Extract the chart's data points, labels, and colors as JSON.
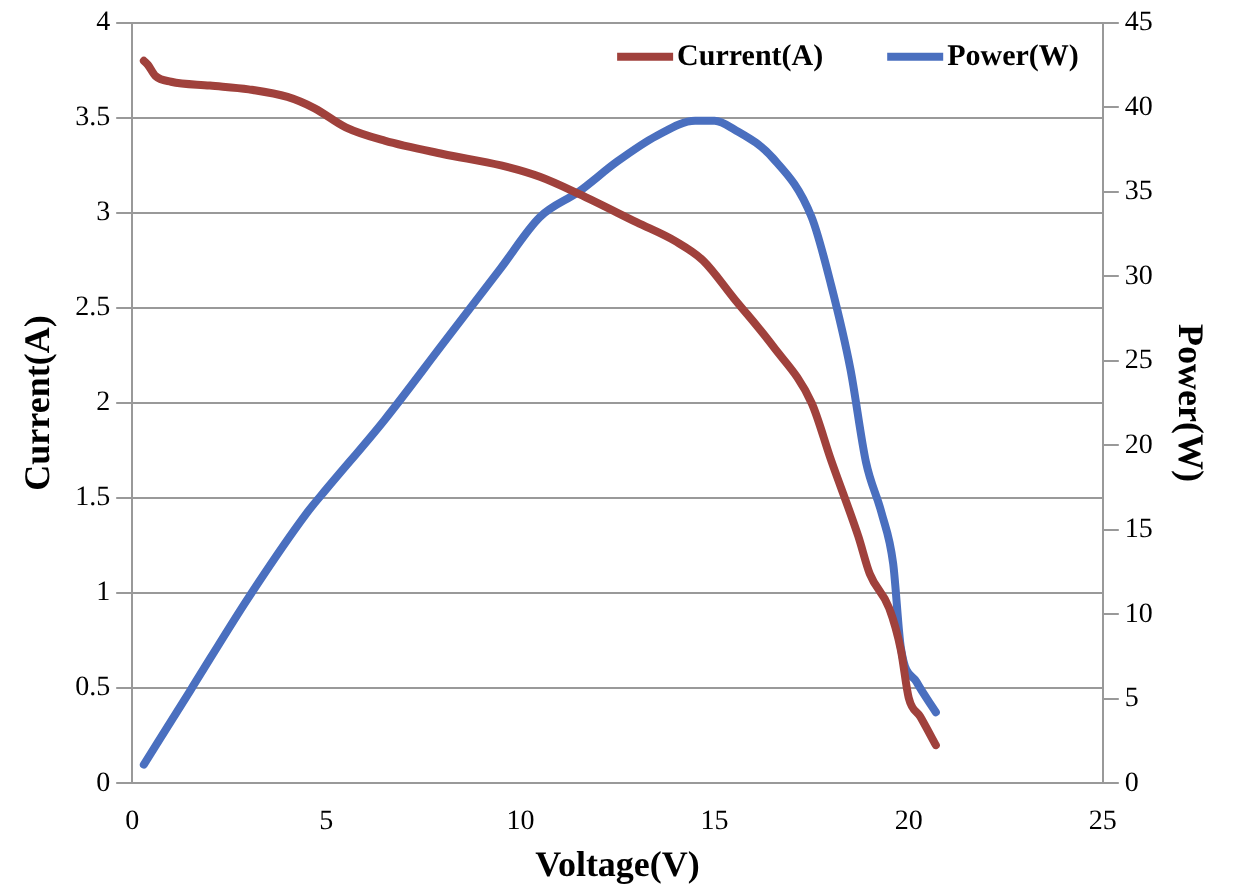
{
  "chart_data": {
    "type": "line",
    "xlabel": "Voltage(V)",
    "ylabel": "Current(A)",
    "y2label": "Power(W)",
    "xlim": [
      0,
      25
    ],
    "xticks": [
      0,
      5,
      10,
      15,
      20,
      25
    ],
    "ylim": [
      0,
      4
    ],
    "yticks": [
      0,
      0.5,
      1,
      1.5,
      2,
      2.5,
      3,
      3.5,
      4
    ],
    "y2lim": [
      0,
      45
    ],
    "y2ticks": [
      0,
      5,
      10,
      15,
      20,
      25,
      30,
      35,
      40,
      45
    ],
    "grid": "y",
    "legend": "top right",
    "marker": "none",
    "line_style": "solid",
    "series": [
      {
        "name": "Current(A)",
        "color": "#a0413c",
        "x": [
          0.3,
          0.4,
          0.6,
          1,
          2,
          3,
          4,
          4.7,
          5.5,
          6.5,
          8,
          9.5,
          10.5,
          11.5,
          13,
          14,
          14.7,
          15.5,
          16.5,
          17.5,
          18,
          18.7,
          19,
          19.5,
          19.8,
          20,
          20.3,
          20.7
        ],
        "values": [
          3.8,
          3.78,
          3.72,
          3.69,
          3.67,
          3.65,
          3.61,
          3.55,
          3.45,
          3.38,
          3.31,
          3.25,
          3.19,
          3.1,
          2.95,
          2.85,
          2.75,
          2.55,
          2.3,
          2.0,
          1.7,
          1.3,
          1.1,
          0.92,
          0.7,
          0.45,
          0.35,
          0.2
        ]
      },
      {
        "name": "Power(W)",
        "color": "#4a6fbf",
        "axis": "y2",
        "x": [
          0.3,
          1.5,
          3,
          4.5,
          5,
          6.5,
          8,
          9.5,
          10.5,
          11.5,
          12.5,
          13.5,
          14.5,
          15,
          15.5,
          16.5,
          17.5,
          18,
          18.5,
          18.9,
          19.3,
          19.6,
          19.8,
          20.2,
          20.7
        ],
        "values": [
          1.1,
          5.5,
          11,
          16,
          17.4,
          21.5,
          26,
          30.5,
          33.5,
          35,
          36.8,
          38.3,
          39.2,
          39.2,
          38.7,
          37,
          33.5,
          29.5,
          24.5,
          19,
          16,
          13,
          8,
          6,
          4.2
        ]
      }
    ]
  }
}
